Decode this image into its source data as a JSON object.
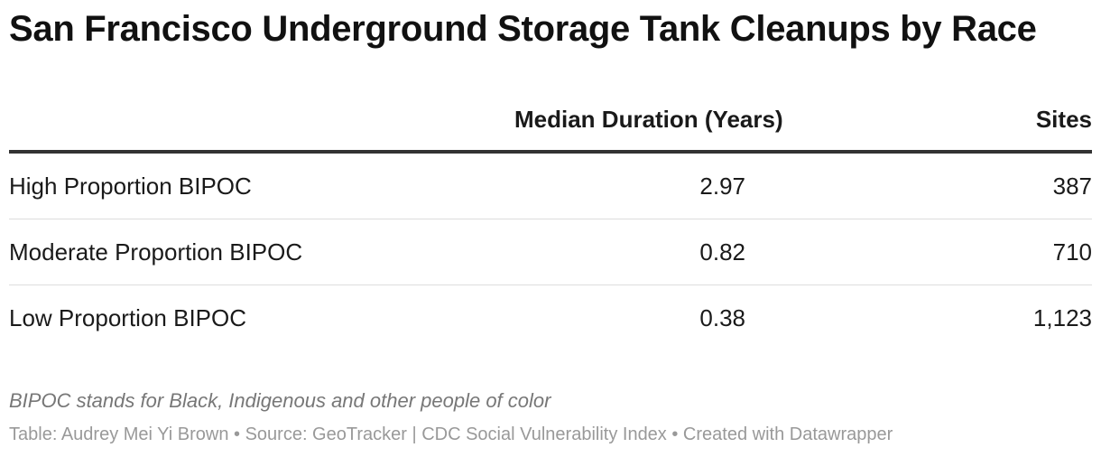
{
  "chart_data": {
    "type": "table",
    "title": "San Francisco Underground Storage Tank Cleanups by Race",
    "columns": [
      "",
      "Median Duration (Years)",
      "Sites"
    ],
    "rows": [
      {
        "category": "High Proportion BIPOC",
        "median_duration": "2.97",
        "sites": "387"
      },
      {
        "category": "Moderate Proportion BIPOC",
        "median_duration": "0.82",
        "sites": "710"
      },
      {
        "category": "Low Proportion BIPOC",
        "median_duration": "0.38",
        "sites": "1,123"
      }
    ],
    "notes": "BIPOC stands for Black, Indigenous and other people of color",
    "footer": "Table: Audrey Mei Yi Brown • Source: GeoTracker | CDC Social Vulnerability Index • Created with Datawrapper"
  }
}
